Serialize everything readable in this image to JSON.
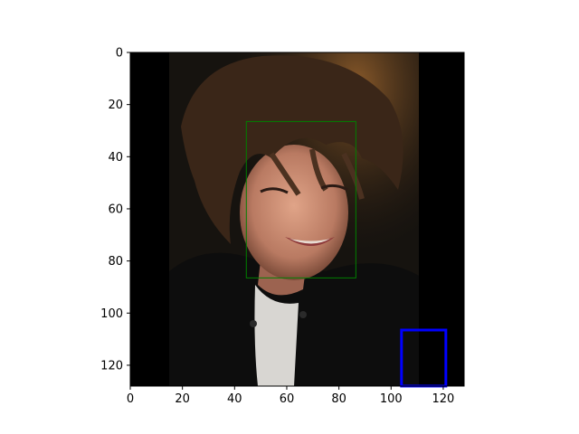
{
  "chart_data": {
    "type": "image",
    "title": "",
    "xlabel": "",
    "ylabel": "",
    "image": {
      "description_name": "portrait-photo",
      "subject": "young man with tousled brown hair, smiling, black jacket, white shirt",
      "extent_x": [
        0,
        128
      ],
      "extent_y": [
        128,
        0
      ],
      "black_border_x_ranges": [
        [
          0,
          15
        ],
        [
          110,
          128
        ]
      ]
    },
    "xlim": [
      0,
      128
    ],
    "ylim": [
      128,
      0
    ],
    "y_inverted": true,
    "xticks": [
      0,
      20,
      40,
      60,
      80,
      100,
      120
    ],
    "yticks": [
      0,
      20,
      40,
      60,
      80,
      100,
      120
    ],
    "xtick_labels": [
      "0",
      "20",
      "40",
      "60",
      "80",
      "100",
      "120"
    ],
    "ytick_labels": [
      "0",
      "20",
      "40",
      "60",
      "80",
      "100",
      "120"
    ],
    "boxes": [
      {
        "name": "face-box",
        "color": "#008000",
        "x0": 44.5,
        "y0": 26.5,
        "x1": 86.5,
        "y1": 86.5
      },
      {
        "name": "blue-box",
        "color": "#0000ff",
        "x0": 104,
        "y0": 106.5,
        "x1": 121,
        "y1": 128
      }
    ],
    "grid": false,
    "legend": null
  }
}
